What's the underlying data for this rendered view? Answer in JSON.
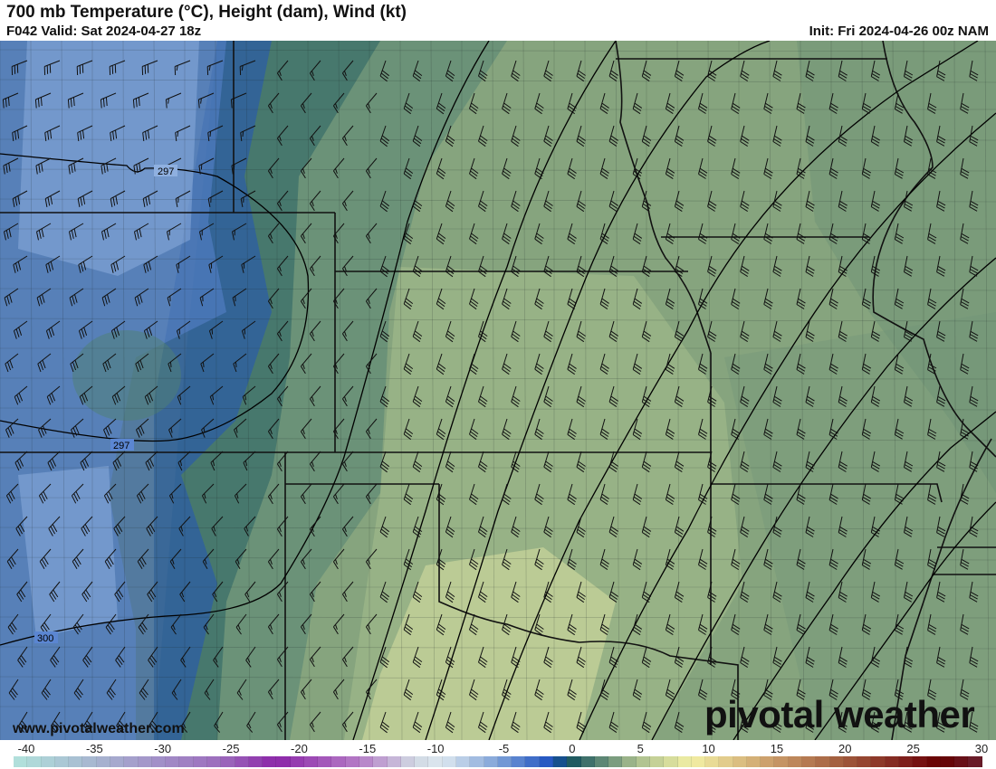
{
  "header": {
    "title": "700 mb Temperature (°C), Height (dam), Wind (kt)",
    "valid": "F042 Valid: Sat 2024-04-27 18z",
    "init": "Init: Fri 2024-04-26 00z NAM"
  },
  "map": {
    "contour_labels": [
      "297",
      "297",
      "300"
    ],
    "watermark_url": "www.pivotalweather.com",
    "logo_text": "pivotal weather"
  },
  "colorbar": {
    "min": -40,
    "max": 30,
    "tick_labels": [
      "-40",
      "-35",
      "-30",
      "-25",
      "-20",
      "-15",
      "-10",
      "-5",
      "0",
      "5",
      "10",
      "15",
      "20",
      "25",
      "30"
    ],
    "stops": [
      {
        "t": -40,
        "color": "#b2e3dc"
      },
      {
        "t": -35,
        "color": "#a8bdd2"
      },
      {
        "t": -30,
        "color": "#a394c9"
      },
      {
        "t": -25,
        "color": "#9c6cbd"
      },
      {
        "t": -21,
        "color": "#8c26a8"
      },
      {
        "t": -15,
        "color": "#b57cc6"
      },
      {
        "t": -11,
        "color": "#d0d8e2"
      },
      {
        "t": -9,
        "color": "#dde8f0"
      },
      {
        "t": -5,
        "color": "#7fa2d8"
      },
      {
        "t": -1,
        "color": "#1a4fbf"
      },
      {
        "t": 0,
        "color": "#11505c"
      },
      {
        "t": 5,
        "color": "#a9be8e"
      },
      {
        "t": 9,
        "color": "#f3f0a5"
      },
      {
        "t": 15,
        "color": "#c99a68"
      },
      {
        "t": 20,
        "color": "#a05a3c"
      },
      {
        "t": 25,
        "color": "#7a1818"
      },
      {
        "t": 27,
        "color": "#640000"
      },
      {
        "t": 30,
        "color": "#6a2030"
      }
    ]
  },
  "field_colors": {
    "cold": "#5b86d2",
    "cold_light": "#8fb0e0",
    "deep_blue": "#1f4fc0",
    "teal": "#245e62",
    "teal_mid": "#4f7f72",
    "green": "#86a47e",
    "green_light": "#a8bf8e",
    "yellow": "#dfe4a4",
    "east_green": "#6e9176"
  }
}
